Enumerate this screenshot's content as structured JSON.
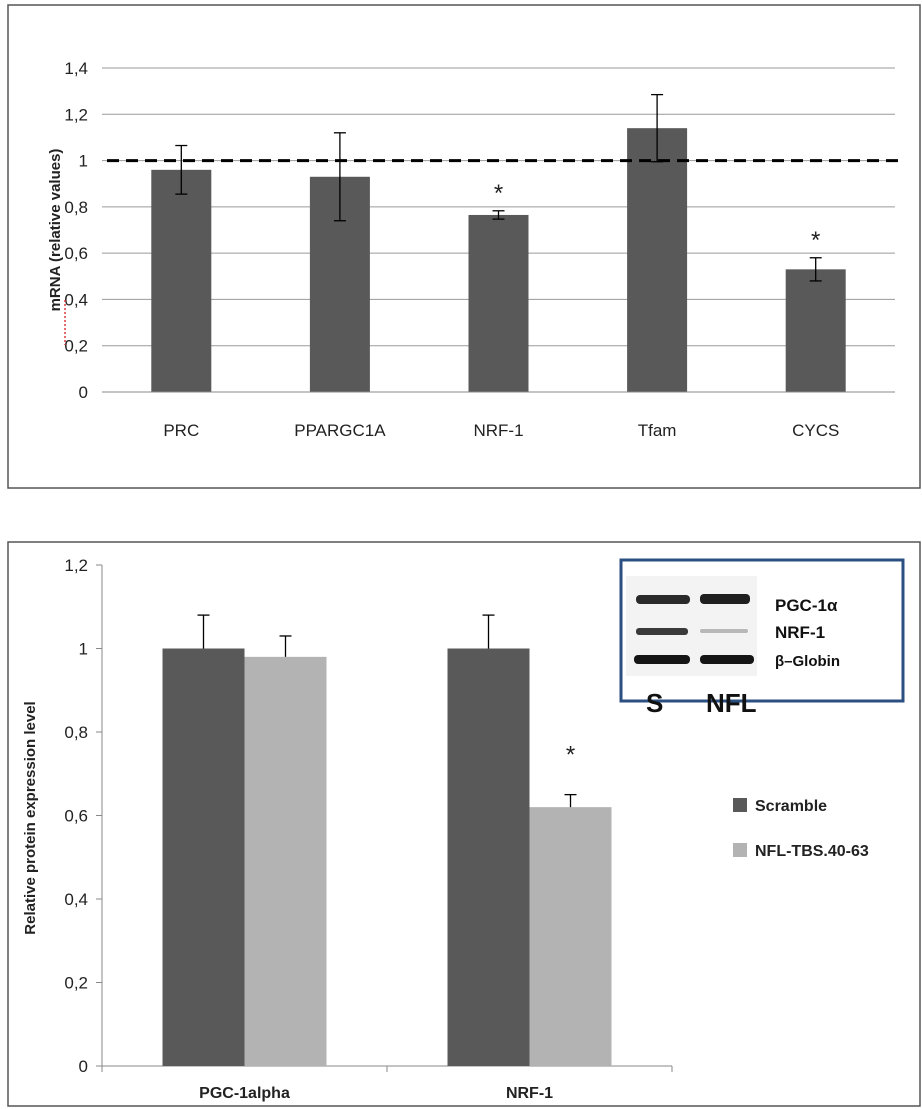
{
  "chart_data": [
    {
      "type": "bar",
      "title": "",
      "xlabel": "",
      "ylabel": "mRNA (relative values)",
      "ylim": [
        0,
        1.4
      ],
      "yticks": [
        "0",
        "0,2",
        "0,4",
        "0,6",
        "0,8",
        "1",
        "1,2",
        "1,4"
      ],
      "grid": true,
      "categories": [
        "PRC",
        "PPARGC1A",
        "NRF-1",
        "Tfam",
        "CYCS"
      ],
      "values": [
        0.96,
        0.93,
        0.765,
        1.14,
        0.53
      ],
      "errors": [
        0.105,
        0.19,
        0.018,
        0.145,
        0.05
      ],
      "significance": [
        "",
        "",
        "*",
        "",
        "*"
      ],
      "reference_line": 1,
      "bar_color": "#595959"
    },
    {
      "type": "bar",
      "title": "",
      "xlabel": "",
      "ylabel": "Relative protein expression level",
      "ylim": [
        0,
        1.2
      ],
      "yticks": [
        "0",
        "0,2",
        "0,4",
        "0,6",
        "0,8",
        "1",
        "1,2"
      ],
      "grid": false,
      "legend_position": "right",
      "categories": [
        "PGC-1alpha",
        "NRF-1"
      ],
      "series": [
        {
          "name": "Scramble",
          "values": [
            1.0,
            1.0
          ],
          "errors": [
            0.08,
            0.08
          ],
          "color": "#595959"
        },
        {
          "name": "NFL-TBS.40-63",
          "values": [
            0.98,
            0.62
          ],
          "errors": [
            0.05,
            0.03
          ],
          "color": "#b3b3b3"
        }
      ],
      "significance": [
        [
          "",
          ""
        ],
        [
          "",
          "*"
        ]
      ],
      "inset": {
        "bands": [
          "PGC-1α",
          "NRF-1",
          "β–Globin"
        ],
        "lanes": [
          "S",
          "NFL"
        ]
      }
    }
  ]
}
